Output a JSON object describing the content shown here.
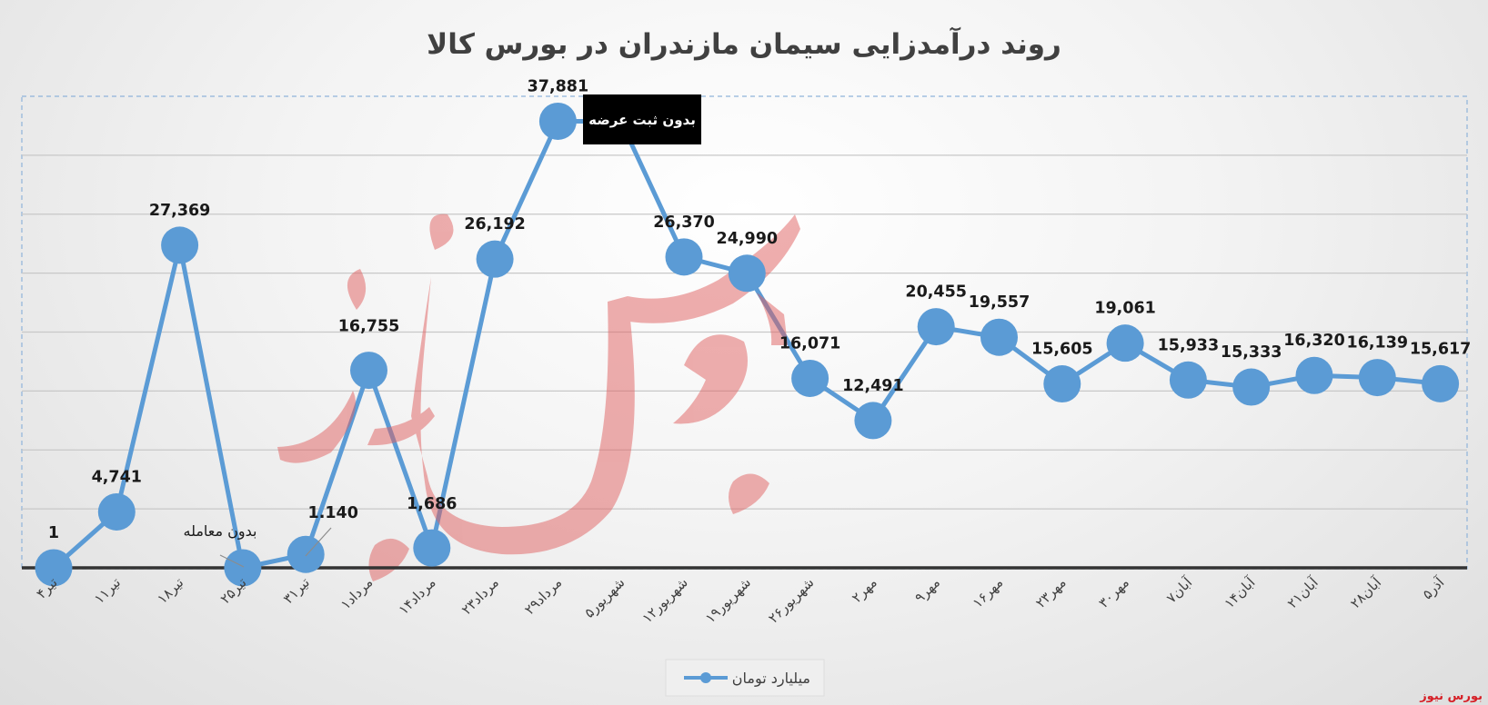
{
  "chart_data": {
    "type": "line",
    "title": "روند درآمدزایی سیمان مازندران در بورس کالا",
    "categories": [
      "۴تیر",
      "۱۱تیر",
      "۱۸تیر",
      "۲۵تیر",
      "۳۱تیر",
      "۱مرداد",
      "۱۴مرداد",
      "۲۳مرداد",
      "۲۹مرداد",
      "۵شهریور",
      "۱۲شهریور",
      "۱۹شهریور",
      "۲۶شهریور",
      "۲مهر",
      "۹مهر",
      "۱۶مهر",
      "۲۳مهر",
      "۳۰مهر",
      "۷آبان",
      "۱۴آبان",
      "۲۱آبان",
      "۲۸آبان",
      "۵آذر"
    ],
    "series": [
      {
        "name": "میلیارد تومان",
        "color": "#5b9bd5",
        "values": [
          1,
          4741,
          27369,
          0,
          1140,
          16755,
          1686,
          26192,
          37881,
          37881,
          26370,
          24990,
          16071,
          12491,
          20455,
          19557,
          15605,
          19061,
          15933,
          15333,
          16320,
          16139,
          15617
        ],
        "labels": [
          "1",
          "4,741",
          "27,369",
          "",
          "1.140",
          "16,755",
          "1,686",
          "26,192",
          "37,881",
          "",
          "26,370",
          "24,990",
          "16,071",
          "12,491",
          "20,455",
          "19,557",
          "15,605",
          "19,061",
          "15,933",
          "15,333",
          "16,320",
          "16,139",
          "15,617"
        ]
      }
    ],
    "ylim": [
      0,
      40000
    ],
    "y_gridlines": [
      5000,
      10000,
      15000,
      20000,
      25000,
      30000,
      35000
    ],
    "grid": true,
    "legend_position": "bottom",
    "annotations": [
      {
        "text": "بدون معامله",
        "category_index": 3
      },
      {
        "text": "بدون ثبت عرضه",
        "category_index": 9
      }
    ],
    "xlabel": "",
    "ylabel": ""
  },
  "watermark_text": "بورس نیوز",
  "brand_text": "بورس نیوز",
  "colors": {
    "line": "#5b9bd5",
    "watermark": "#e06060",
    "brand": "#d61f26",
    "annotation_box": "#000000"
  }
}
